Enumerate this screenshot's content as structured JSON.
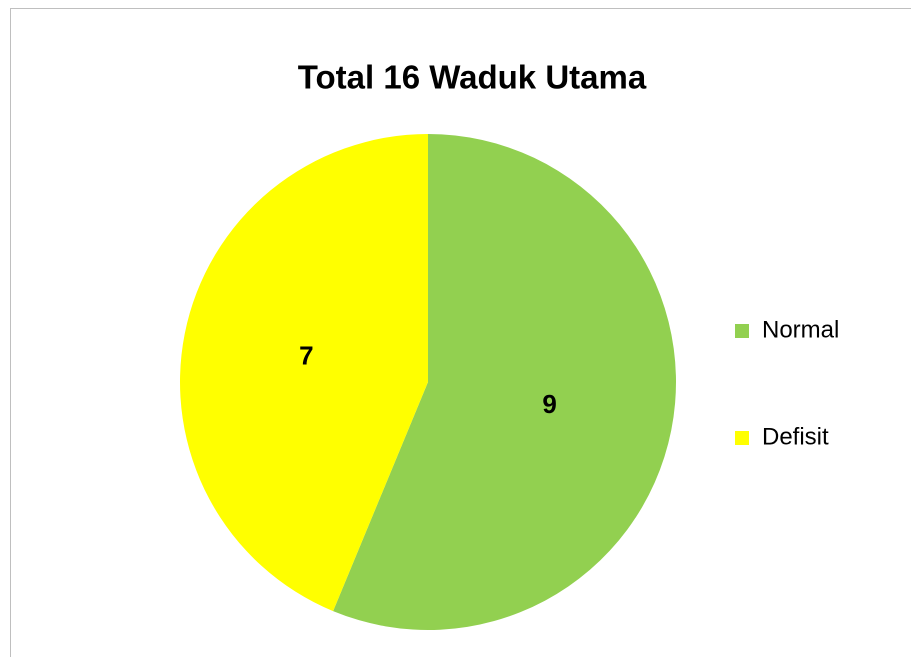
{
  "chart_data": {
    "type": "pie",
    "title": "Total 16 Waduk Utama",
    "categories": [
      "Normal",
      "Defisit"
    ],
    "values": [
      9,
      7
    ],
    "colors": [
      "#92d050",
      "#ffff00"
    ],
    "legend": "right"
  }
}
